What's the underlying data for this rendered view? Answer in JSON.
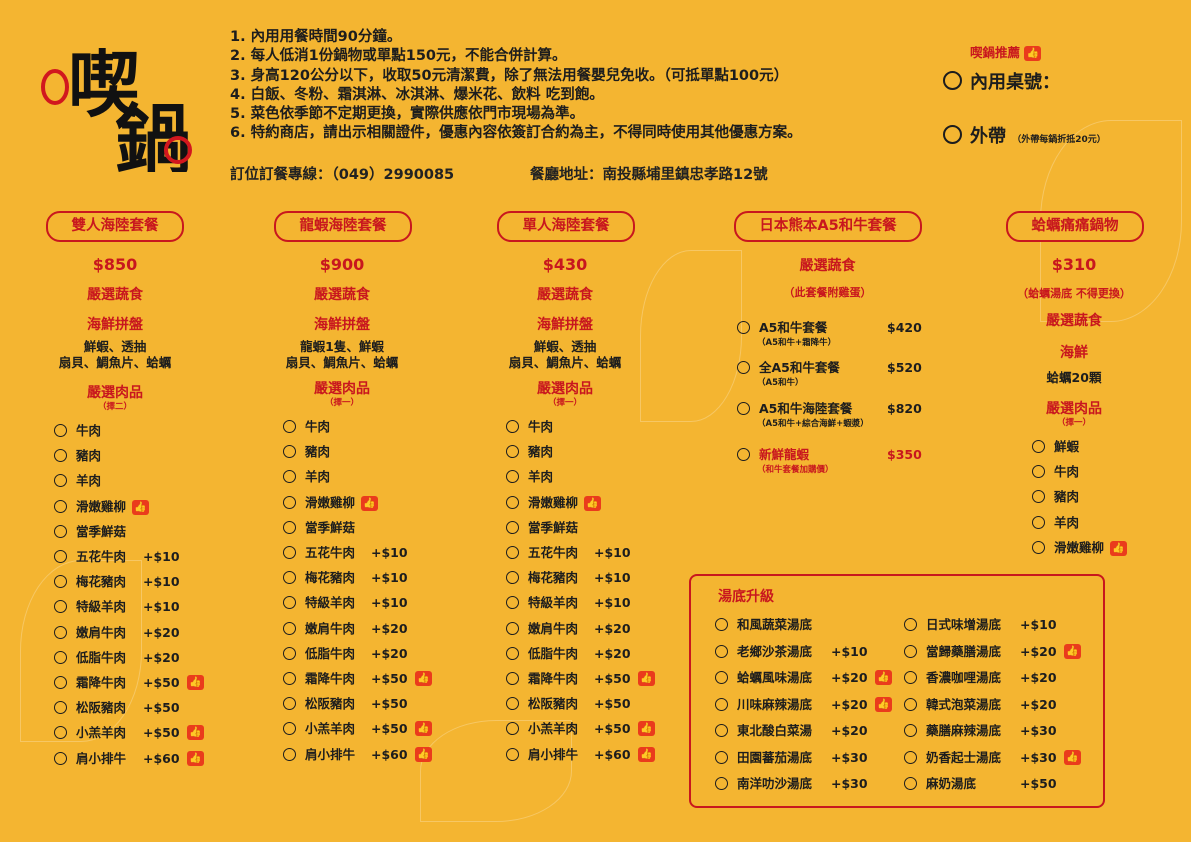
{
  "brand": {
    "name_1": "喫",
    "name_2": "鍋"
  },
  "rules": [
    "1. 內用用餐時間90分鐘。",
    "2. 每人低消1份鍋物或單點150元，不能合併計算。",
    "3. 身高120公分以下，收取50元清潔費，除了無法用餐嬰兒免收。（可抵單點100元）",
    "4. 白飯、冬粉、霜淇淋、冰淇淋、爆米花、飲料 吃到飽。",
    "5. 菜色依季節不定期更換，實際供應依門市現場為準。",
    "6. 特約商店，請出示相關證件，優惠內容依簽訂合約為主，不得同時使用其他優惠方案。"
  ],
  "contact": {
    "phone": "訂位訂餐專線：（049）2990085",
    "address": "餐廳地址：南投縣埔里鎮忠孝路12號"
  },
  "header_right": {
    "recommend": "喫鍋推薦",
    "dine_in": "內用桌號：",
    "takeout": "外帶",
    "takeout_note": "（外帶每鍋折抵20元）"
  },
  "icons": {
    "thumb": "thumbs-up-icon",
    "circle": "checkbox-circle-icon"
  },
  "colors": {
    "background": "#f4b531",
    "accent": "#c8171e",
    "thumb": "#ea3b1c"
  },
  "sets": {
    "couple": {
      "title": "雙人海陸套餐",
      "price": "$850",
      "veg": "嚴選蔬食",
      "seafood": "海鮮拼盤",
      "seafood_line1": "鮮蝦、透抽",
      "seafood_line2": "扇貝、鯛魚片、蛤蠣",
      "meat": "嚴選肉品",
      "meat_note": "（擇二）",
      "items": [
        {
          "name": "牛肉",
          "add": "",
          "thumb": false
        },
        {
          "name": "豬肉",
          "add": "",
          "thumb": false
        },
        {
          "name": "羊肉",
          "add": "",
          "thumb": false
        },
        {
          "name": "滑嫩雞柳",
          "add": "",
          "thumb": true
        },
        {
          "name": "當季鮮菇",
          "add": "",
          "thumb": false
        },
        {
          "name": "五花牛肉",
          "add": "+$10",
          "thumb": false
        },
        {
          "name": "梅花豬肉",
          "add": "+$10",
          "thumb": false
        },
        {
          "name": "特級羊肉",
          "add": "+$10",
          "thumb": false
        },
        {
          "name": "嫩肩牛肉",
          "add": "+$20",
          "thumb": false
        },
        {
          "name": "低脂牛肉",
          "add": "+$20",
          "thumb": false
        },
        {
          "name": "霜降牛肉",
          "add": "+$50",
          "thumb": true
        },
        {
          "name": "松阪豬肉",
          "add": "+$50",
          "thumb": false
        },
        {
          "name": "小羔羊肉",
          "add": "+$50",
          "thumb": true
        },
        {
          "name": "肩小排牛",
          "add": "+$60",
          "thumb": true
        }
      ]
    },
    "lobster": {
      "title": "龍蝦海陸套餐",
      "price": "$900",
      "veg": "嚴選蔬食",
      "seafood": "海鮮拼盤",
      "seafood_line1": "龍蝦1隻、鮮蝦",
      "seafood_line2": "扇貝、鯛魚片、蛤蠣",
      "meat": "嚴選肉品",
      "meat_note": "（擇一）",
      "items": [
        {
          "name": "牛肉",
          "add": "",
          "thumb": false
        },
        {
          "name": "豬肉",
          "add": "",
          "thumb": false
        },
        {
          "name": "羊肉",
          "add": "",
          "thumb": false
        },
        {
          "name": "滑嫩雞柳",
          "add": "",
          "thumb": true
        },
        {
          "name": "當季鮮菇",
          "add": "",
          "thumb": false
        },
        {
          "name": "五花牛肉",
          "add": "+$10",
          "thumb": false
        },
        {
          "name": "梅花豬肉",
          "add": "+$10",
          "thumb": false
        },
        {
          "name": "特級羊肉",
          "add": "+$10",
          "thumb": false
        },
        {
          "name": "嫩肩牛肉",
          "add": "+$20",
          "thumb": false
        },
        {
          "name": "低脂牛肉",
          "add": "+$20",
          "thumb": false
        },
        {
          "name": "霜降牛肉",
          "add": "+$50",
          "thumb": true
        },
        {
          "name": "松阪豬肉",
          "add": "+$50",
          "thumb": false
        },
        {
          "name": "小羔羊肉",
          "add": "+$50",
          "thumb": true
        },
        {
          "name": "肩小排牛",
          "add": "+$60",
          "thumb": true
        }
      ]
    },
    "single": {
      "title": "單人海陸套餐",
      "price": "$430",
      "veg": "嚴選蔬食",
      "seafood": "海鮮拼盤",
      "seafood_line1": "鮮蝦、透抽",
      "seafood_line2": "扇貝、鯛魚片、蛤蠣",
      "meat": "嚴選肉品",
      "meat_note": "（擇一）",
      "items": [
        {
          "name": "牛肉",
          "add": "",
          "thumb": false
        },
        {
          "name": "豬肉",
          "add": "",
          "thumb": false
        },
        {
          "name": "羊肉",
          "add": "",
          "thumb": false
        },
        {
          "name": "滑嫩雞柳",
          "add": "",
          "thumb": true
        },
        {
          "name": "當季鮮菇",
          "add": "",
          "thumb": false
        },
        {
          "name": "五花牛肉",
          "add": "+$10",
          "thumb": false
        },
        {
          "name": "梅花豬肉",
          "add": "+$10",
          "thumb": false
        },
        {
          "name": "特級羊肉",
          "add": "+$10",
          "thumb": false
        },
        {
          "name": "嫩肩牛肉",
          "add": "+$20",
          "thumb": false
        },
        {
          "name": "低脂牛肉",
          "add": "+$20",
          "thumb": false
        },
        {
          "name": "霜降牛肉",
          "add": "+$50",
          "thumb": true
        },
        {
          "name": "松阪豬肉",
          "add": "+$50",
          "thumb": false
        },
        {
          "name": "小羔羊肉",
          "add": "+$50",
          "thumb": true
        },
        {
          "name": "肩小排牛",
          "add": "+$60",
          "thumb": true
        }
      ]
    },
    "wagyu": {
      "title": "日本熊本A5和牛套餐",
      "veg": "嚴選蔬食",
      "note": "（此套餐附雞蛋）",
      "items": [
        {
          "name": "A5和牛套餐",
          "sub": "（A5和牛+霜降牛）",
          "price": "$420",
          "red": false
        },
        {
          "name": "全A5和牛套餐",
          "sub": "（A5和牛）",
          "price": "$520",
          "red": false
        },
        {
          "name": "A5和牛海陸套餐",
          "sub": "（A5和牛+綜合海鮮+蝦漿）",
          "price": "$820",
          "red": false
        },
        {
          "name": "新鮮龍蝦",
          "sub": "（和牛套餐加購價）",
          "price": "$350",
          "red": true
        }
      ]
    },
    "clam": {
      "title": "蛤蠣痛痛鍋物",
      "price": "$310",
      "note": "（蛤蠣湯底 不得更換）",
      "veg": "嚴選蔬食",
      "seafood": "海鮮",
      "seafood_line1": "蛤蠣20顆",
      "meat": "嚴選肉品",
      "meat_note": "（擇一）",
      "items": [
        {
          "name": "鮮蝦",
          "thumb": false
        },
        {
          "name": "牛肉",
          "thumb": false
        },
        {
          "name": "豬肉",
          "thumb": false
        },
        {
          "name": "羊肉",
          "thumb": false
        },
        {
          "name": "滑嫩雞柳",
          "thumb": true
        }
      ]
    }
  },
  "soup_upgrade": {
    "title": "湯底升級",
    "left": [
      {
        "name": "和風蔬菜湯底",
        "add": "",
        "thumb": false
      },
      {
        "name": "老鄉沙茶湯底",
        "add": "+$10",
        "thumb": false
      },
      {
        "name": "蛤蠣風味湯底",
        "add": "+$20",
        "thumb": true
      },
      {
        "name": "川味麻辣湯底",
        "add": "+$20",
        "thumb": true
      },
      {
        "name": "東北酸白菜湯",
        "add": "+$20",
        "thumb": false
      },
      {
        "name": "田園蕃茄湯底",
        "add": "+$30",
        "thumb": false
      },
      {
        "name": "南洋叻沙湯底",
        "add": "+$30",
        "thumb": false
      }
    ],
    "right": [
      {
        "name": "日式味增湯底",
        "add": "+$10",
        "thumb": false
      },
      {
        "name": "當歸藥膳湯底",
        "add": "+$20",
        "thumb": true
      },
      {
        "name": "香濃咖哩湯底",
        "add": "+$20",
        "thumb": false
      },
      {
        "name": "韓式泡菜湯底",
        "add": "+$20",
        "thumb": false
      },
      {
        "name": "藥膳麻辣湯底",
        "add": "+$30",
        "thumb": false
      },
      {
        "name": "奶香起士湯底",
        "add": "+$30",
        "thumb": true
      },
      {
        "name": "麻奶湯底",
        "add": "+$50",
        "thumb": false
      }
    ]
  }
}
